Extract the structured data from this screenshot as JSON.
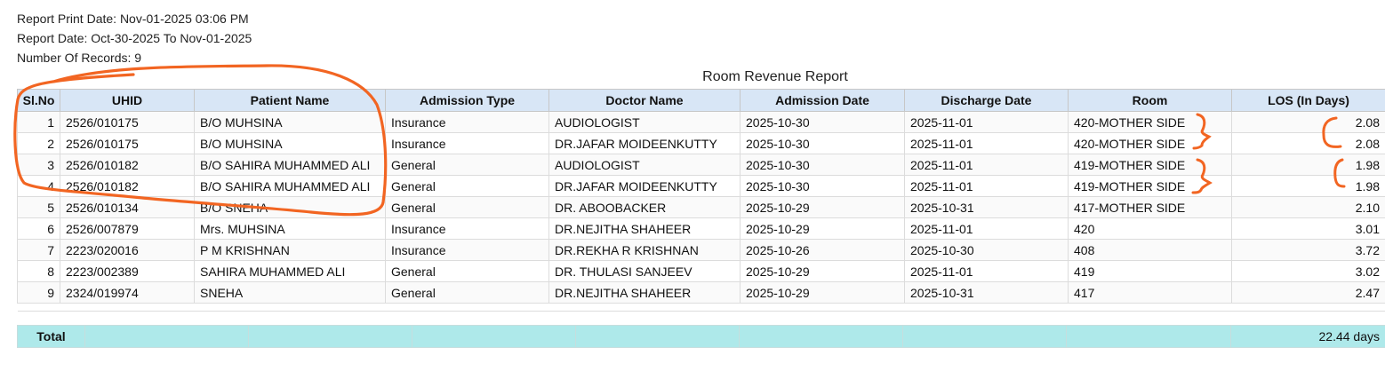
{
  "report": {
    "print_date": "Report Print Date: Nov-01-2025 03:06 PM",
    "report_date": "Report Date: Oct-30-2025 To Nov-01-2025",
    "record_count": "Number Of Records: 9",
    "title": "Room Revenue Report"
  },
  "table": {
    "columns": [
      "Sl.No",
      "UHID",
      "Patient Name",
      "Admission Type",
      "Doctor Name",
      "Admission Date",
      "Discharge Date",
      "Room",
      "LOS (In Days)"
    ],
    "rows": [
      [
        "1",
        "2526/010175",
        "B/O MUHSINA",
        "Insurance",
        "AUDIOLOGIST",
        "2025-10-30",
        "2025-11-01",
        "420-MOTHER SIDE",
        "2.08"
      ],
      [
        "2",
        "2526/010175",
        "B/O MUHSINA",
        "Insurance",
        "DR.JAFAR MOIDEENKUTTY",
        "2025-10-30",
        "2025-11-01",
        "420-MOTHER SIDE",
        "2.08"
      ],
      [
        "3",
        "2526/010182",
        "B/O SAHIRA MUHAMMED ALI",
        "General",
        "AUDIOLOGIST",
        "2025-10-30",
        "2025-11-01",
        "419-MOTHER SIDE",
        "1.98"
      ],
      [
        "4",
        "2526/010182",
        "B/O SAHIRA MUHAMMED ALI",
        "General",
        "DR.JAFAR MOIDEENKUTTY",
        "2025-10-30",
        "2025-11-01",
        "419-MOTHER SIDE",
        "1.98"
      ],
      [
        "5",
        "2526/010134",
        "B/O SNEHA",
        "General",
        "DR. ABOOBACKER",
        "2025-10-29",
        "2025-10-31",
        "417-MOTHER SIDE",
        "2.10"
      ],
      [
        "6",
        "2526/007879",
        "Mrs. MUHSINA",
        "Insurance",
        "DR.NEJITHA SHAHEER",
        "2025-10-29",
        "2025-11-01",
        "420",
        "3.01"
      ],
      [
        "7",
        "2223/020016",
        "P M KRISHNAN",
        "Insurance",
        "DR.REKHA R KRISHNAN",
        "2025-10-26",
        "2025-10-30",
        "408",
        "3.72"
      ],
      [
        "8",
        "2223/002389",
        "SAHIRA MUHAMMED ALI",
        "General",
        "DR. THULASI SANJEEV",
        "2025-10-29",
        "2025-11-01",
        "419",
        "3.02"
      ],
      [
        "9",
        "2324/019974",
        "SNEHA",
        "General",
        "DR.NEJITHA SHAHEER",
        "2025-10-29",
        "2025-10-31",
        "417",
        "2.47"
      ]
    ]
  },
  "totals": {
    "label": "Total",
    "los_total": "22.44 days"
  },
  "annotation_color": "#f26522"
}
